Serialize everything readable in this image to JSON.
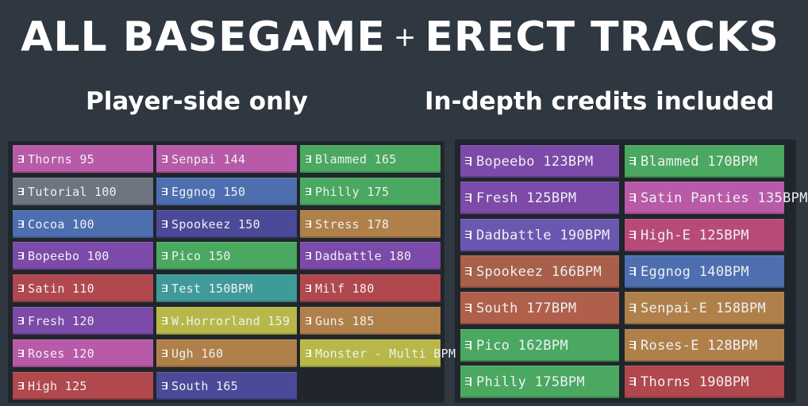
{
  "header": {
    "title_left": "ALL BASEGAME",
    "title_plus": "+",
    "title_right": "ERECT TRACKS",
    "subtitle_left": "Player-side only",
    "subtitle_right": "In-depth credits included"
  },
  "left_columns": [
    [
      {
        "label": "Thorns 95",
        "color": "#b85aa8"
      },
      {
        "label": "Tutorial 100",
        "color": "#6e7480"
      },
      {
        "label": "Cocoa 100",
        "color": "#4d6fb0"
      },
      {
        "label": "Bopeebo 100",
        "color": "#7c4aa8"
      },
      {
        "label": "Satin 110",
        "color": "#b0484e"
      },
      {
        "label": "Fresh 120",
        "color": "#7c4aa8"
      },
      {
        "label": "Roses 120",
        "color": "#b85aa8"
      },
      {
        "label": "High 125",
        "color": "#b0484e"
      }
    ],
    [
      {
        "label": "Senpai 144",
        "color": "#b85aa8"
      },
      {
        "label": "Eggnog 150",
        "color": "#4d6fb0"
      },
      {
        "label": "Spookeez 150",
        "color": "#4a4a98"
      },
      {
        "label": "Pico 150",
        "color": "#4aa860"
      },
      {
        "label": "Test 150BPM",
        "color": "#3f9a9a"
      },
      {
        "label": "W.Horrorland 159",
        "color": "#b8b84a"
      },
      {
        "label": "Ugh 160",
        "color": "#b0804a"
      },
      {
        "label": "South 165",
        "color": "#4a4a98"
      }
    ],
    [
      {
        "label": "Blammed 165",
        "color": "#4aa860"
      },
      {
        "label": "Philly 175",
        "color": "#4aa860"
      },
      {
        "label": "Stress 178",
        "color": "#b0804a"
      },
      {
        "label": "Dadbattle 180",
        "color": "#7c4aa8"
      },
      {
        "label": "Milf 180",
        "color": "#b0484e"
      },
      {
        "label": "Guns 185",
        "color": "#b0804a"
      },
      {
        "label": "Monster - Multi BPM",
        "color": "#b8b84a"
      }
    ]
  ],
  "right_columns": [
    [
      {
        "label": "Bopeebo 123BPM",
        "color": "#7c4aa8"
      },
      {
        "label": "Fresh 125BPM",
        "color": "#7c4aa8"
      },
      {
        "label": "Dadbattle 190BPM",
        "color": "#6a58b0"
      },
      {
        "label": "Spookeez 166BPM",
        "color": "#a8604a"
      },
      {
        "label": "South 177BPM",
        "color": "#b0604a"
      },
      {
        "label": "Pico 162BPM",
        "color": "#4aa860"
      },
      {
        "label": "Philly 175BPM",
        "color": "#4aa860"
      }
    ],
    [
      {
        "label": "Blammed 170BPM",
        "color": "#4aa860"
      },
      {
        "label": "Satin Panties 135BPM",
        "color": "#b85aa8"
      },
      {
        "label": "High-E 125BPM",
        "color": "#b84a7a"
      },
      {
        "label": "Eggnog 140BPM",
        "color": "#4d6fb0"
      },
      {
        "label": "Senpai-E 158BPM",
        "color": "#b0804a"
      },
      {
        "label": "Roses-E 128BPM",
        "color": "#b0804a"
      },
      {
        "label": "Thorns 190BPM",
        "color": "#b0484e"
      }
    ]
  ]
}
